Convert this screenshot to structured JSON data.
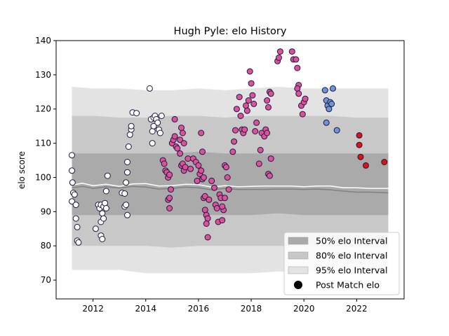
{
  "chart_data": {
    "type": "scatter",
    "title": "Hugh Pyle: elo History",
    "xlabel": "",
    "ylabel": "elo score",
    "xlim": [
      2010.6,
      2023.8
    ],
    "ylim": [
      64.5,
      140
    ],
    "xticks": [
      2012,
      2014,
      2016,
      2018,
      2020,
      2022
    ],
    "yticks": [
      70,
      80,
      90,
      100,
      110,
      120,
      130,
      140
    ],
    "grid": false,
    "legend_position": "lower-right",
    "legend": [
      {
        "label": "50% elo Interval",
        "kind": "band",
        "color": "#aaaaaa"
      },
      {
        "label": "80% elo Interval",
        "kind": "band",
        "color": "#c8c8c8"
      },
      {
        "label": "95% elo Interval",
        "kind": "band",
        "color": "#e3e3e3"
      },
      {
        "label": "Post Match elo",
        "kind": "marker",
        "color": "#000000"
      }
    ],
    "bands": {
      "x": [
        2011.2,
        2012.0,
        2013.0,
        2014.0,
        2015.0,
        2016.0,
        2017.0,
        2018.0,
        2019.0,
        2020.0,
        2021.0,
        2022.0,
        2023.2
      ],
      "p95_upper": [
        126.5,
        126,
        126,
        125.5,
        125.5,
        126,
        125.5,
        126,
        126.5,
        126,
        126,
        126,
        126
      ],
      "p80_upper": [
        118,
        118,
        117.5,
        117.5,
        118,
        118,
        117.5,
        118,
        118,
        118,
        118,
        117.5,
        117.5
      ],
      "p50_upper": [
        107,
        107,
        107,
        107,
        107,
        107.5,
        107,
        107,
        107,
        107,
        107,
        107,
        107
      ],
      "p50_lower": [
        89,
        89,
        89,
        89,
        89,
        89,
        89,
        89,
        89.5,
        89,
        89,
        89,
        89
      ],
      "p80_lower": [
        80,
        80,
        80,
        80,
        79.5,
        80,
        80,
        80,
        80,
        80,
        80,
        79.5,
        79.5
      ],
      "p95_lower": [
        73,
        73,
        73,
        72,
        72,
        72,
        72,
        72,
        72.5,
        72.5,
        72,
        72,
        72
      ]
    },
    "median_line": {
      "color": "#ffffff",
      "x": [
        2011.2,
        2011.6,
        2012.0,
        2012.5,
        2013.0,
        2013.5,
        2014.0,
        2014.5,
        2015.0,
        2015.5,
        2016.0,
        2016.5,
        2017.0,
        2017.5,
        2018.0,
        2018.5,
        2019.0,
        2019.5,
        2020.0,
        2020.5,
        2021.0,
        2021.5,
        2022.0,
        2022.5,
        2023.2
      ],
      "y": [
        97.8,
        98.3,
        97.6,
        98.0,
        97.4,
        98.1,
        98.2,
        97.5,
        97.6,
        98.0,
        97.9,
        97.2,
        97.6,
        97.3,
        97.4,
        97.5,
        97.5,
        97.5,
        97.3,
        97.5,
        97.5,
        97.0,
        97.0,
        96.8,
        96.8
      ]
    },
    "mean_line": {
      "color": "#808080",
      "x": [
        2011.2,
        2011.6,
        2012.0,
        2012.5,
        2013.0,
        2013.5,
        2014.0,
        2014.5,
        2015.0,
        2015.5,
        2016.0,
        2016.5,
        2017.0,
        2017.5,
        2018.0,
        2018.5,
        2019.0,
        2019.5,
        2020.0,
        2020.5,
        2021.0,
        2021.5,
        2022.0,
        2022.5,
        2023.2
      ],
      "y": [
        97.0,
        97.4,
        96.8,
        97.3,
        96.9,
        97.4,
        97.2,
        96.6,
        96.8,
        97.2,
        97.0,
        96.4,
        96.8,
        96.5,
        96.5,
        96.5,
        96.6,
        96.6,
        96.5,
        96.6,
        96.4,
        96.0,
        95.7,
        95.7,
        95.5
      ]
    },
    "series": [
      {
        "color": "#ffffff",
        "points": [
          [
            2011.2,
            106.5
          ],
          [
            2011.2,
            102
          ],
          [
            2011.22,
            98.5
          ],
          [
            2011.25,
            95.5
          ],
          [
            2011.3,
            95
          ],
          [
            2011.2,
            93
          ],
          [
            2011.35,
            92
          ],
          [
            2011.35,
            88
          ],
          [
            2011.4,
            85.5
          ],
          [
            2011.4,
            81.5
          ],
          [
            2011.45,
            81
          ],
          [
            2012.2,
            92
          ],
          [
            2012.25,
            91
          ],
          [
            2012.3,
            92
          ],
          [
            2012.35,
            89.5
          ],
          [
            2012.3,
            87
          ],
          [
            2012.4,
            88
          ],
          [
            2012.4,
            91.5
          ],
          [
            2012.45,
            92.5
          ],
          [
            2012.5,
            91
          ],
          [
            2012.3,
            83
          ],
          [
            2012.35,
            82
          ],
          [
            2012.1,
            85
          ],
          [
            2012.5,
            96
          ],
          [
            2012.55,
            100.5
          ],
          [
            2013.1,
            95.5
          ],
          [
            2013.2,
            95.3
          ],
          [
            2013.25,
            98.5
          ],
          [
            2013.3,
            101.5
          ],
          [
            2013.3,
            104.5
          ],
          [
            2013.35,
            109
          ],
          [
            2013.4,
            112.5
          ],
          [
            2013.45,
            114
          ],
          [
            2013.45,
            115
          ],
          [
            2013.5,
            119
          ],
          [
            2013.65,
            118.8
          ],
          [
            2013.2,
            91.5
          ],
          [
            2013.25,
            92
          ],
          [
            2013.3,
            89
          ],
          [
            2014.15,
            126
          ],
          [
            2014.2,
            117
          ],
          [
            2014.3,
            117.5
          ],
          [
            2014.35,
            118
          ],
          [
            2014.4,
            117
          ],
          [
            2014.45,
            116
          ],
          [
            2014.5,
            114
          ],
          [
            2014.55,
            113
          ],
          [
            2014.6,
            118
          ],
          [
            2014.25,
            113.5
          ],
          [
            2014.3,
            115
          ],
          [
            2014.25,
            110
          ]
        ]
      },
      {
        "color": "#e0509a",
        "points": [
          [
            2014.65,
            105
          ],
          [
            2014.7,
            104
          ],
          [
            2014.75,
            102
          ],
          [
            2014.8,
            101.5
          ],
          [
            2014.85,
            100
          ],
          [
            2014.9,
            100.8
          ],
          [
            2014.95,
            96.5
          ],
          [
            2014.85,
            93.5
          ],
          [
            2014.9,
            94
          ],
          [
            2014.9,
            91
          ],
          [
            2015.0,
            110
          ],
          [
            2015.05,
            111
          ],
          [
            2015.1,
            112
          ],
          [
            2015.15,
            109
          ],
          [
            2015.2,
            108.5
          ],
          [
            2015.1,
            117
          ],
          [
            2015.3,
            111
          ],
          [
            2015.35,
            114.5
          ],
          [
            2015.4,
            113
          ],
          [
            2015.3,
            107
          ],
          [
            2015.45,
            110
          ],
          [
            2015.35,
            103.5
          ],
          [
            2015.4,
            104
          ],
          [
            2015.45,
            102
          ],
          [
            2015.5,
            103
          ],
          [
            2015.6,
            105.5
          ],
          [
            2015.7,
            102.5
          ],
          [
            2015.8,
            105.5
          ],
          [
            2015.9,
            104.5
          ],
          [
            2016.0,
            103.5
          ],
          [
            2016.05,
            101
          ],
          [
            2016.1,
            102
          ],
          [
            2016.15,
            99.5
          ],
          [
            2016.2,
            100
          ],
          [
            2015.95,
            99
          ],
          [
            2016.1,
            113
          ],
          [
            2016.15,
            107.5
          ],
          [
            2016.2,
            94
          ],
          [
            2016.25,
            94.5
          ],
          [
            2016.25,
            90.5
          ],
          [
            2016.3,
            89
          ],
          [
            2016.35,
            88
          ],
          [
            2016.3,
            86.5
          ],
          [
            2016.35,
            82.5
          ],
          [
            2016.4,
            93.5
          ],
          [
            2016.5,
            99
          ],
          [
            2016.6,
            97
          ],
          [
            2016.65,
            92
          ],
          [
            2016.7,
            91
          ],
          [
            2016.8,
            95
          ],
          [
            2016.85,
            94
          ],
          [
            2016.75,
            87
          ],
          [
            2016.9,
            87.5
          ],
          [
            2016.95,
            90.5
          ],
          [
            2016.9,
            91.5
          ],
          [
            2017.0,
            94
          ],
          [
            2017.0,
            103.5
          ],
          [
            2017.05,
            103
          ],
          [
            2017.1,
            100
          ],
          [
            2017.15,
            96.5
          ],
          [
            2017.3,
            107.5
          ],
          [
            2017.35,
            110.5
          ],
          [
            2017.4,
            113.8
          ],
          [
            2017.45,
            120
          ],
          [
            2017.55,
            123.5
          ],
          [
            2017.6,
            118
          ],
          [
            2017.65,
            114
          ],
          [
            2017.7,
            113
          ],
          [
            2017.75,
            114
          ],
          [
            2017.8,
            121
          ],
          [
            2017.85,
            119.5
          ],
          [
            2017.9,
            122.5
          ],
          [
            2017.95,
            131
          ],
          [
            2018.0,
            127.5
          ],
          [
            2018.05,
            124
          ],
          [
            2018.1,
            121.5
          ],
          [
            2018.15,
            113.5
          ],
          [
            2018.2,
            116
          ],
          [
            2018.3,
            104
          ],
          [
            2018.35,
            108
          ],
          [
            2018.4,
            113
          ],
          [
            2018.5,
            112
          ],
          [
            2018.55,
            114
          ],
          [
            2018.6,
            113
          ],
          [
            2018.65,
            101
          ],
          [
            2018.7,
            100.5
          ],
          [
            2018.75,
            105.5
          ],
          [
            2018.6,
            122.5
          ],
          [
            2018.7,
            125
          ],
          [
            2018.75,
            124.5
          ],
          [
            2018.65,
            120.5
          ],
          [
            2019.0,
            134
          ],
          [
            2019.05,
            135
          ],
          [
            2019.1,
            136.8
          ],
          [
            2019.55,
            136.8
          ],
          [
            2019.6,
            134.5
          ],
          [
            2019.7,
            134.5
          ],
          [
            2019.75,
            132
          ],
          [
            2019.8,
            127
          ],
          [
            2019.75,
            126
          ],
          [
            2019.8,
            124.5
          ],
          [
            2019.9,
            121
          ],
          [
            2019.95,
            118.5
          ],
          [
            2020.0,
            122
          ],
          [
            2020.05,
            123
          ]
        ]
      },
      {
        "color": "#6f93d6",
        "points": [
          [
            2020.8,
            125.5
          ],
          [
            2020.85,
            122.5
          ],
          [
            2020.9,
            121
          ],
          [
            2020.95,
            120
          ],
          [
            2021.0,
            122
          ],
          [
            2021.05,
            121.5
          ],
          [
            2021.1,
            126
          ],
          [
            2020.85,
            116
          ],
          [
            2021.25,
            113.8
          ]
        ]
      },
      {
        "color": "#dd1111",
        "points": [
          [
            2022.1,
            112.3
          ],
          [
            2022.1,
            109.5
          ],
          [
            2022.15,
            106
          ],
          [
            2022.35,
            103.5
          ],
          [
            2023.05,
            104.5
          ]
        ]
      }
    ]
  }
}
